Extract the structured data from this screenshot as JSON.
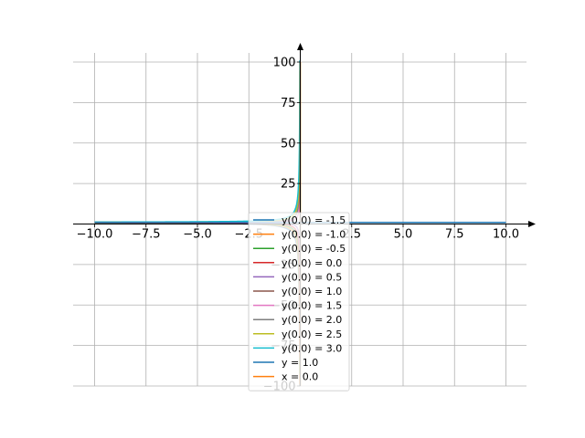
{
  "chart_data": {
    "type": "line",
    "title": "",
    "xlabel": "",
    "ylabel": "",
    "xlim": [
      -10,
      10
    ],
    "ylim": [
      -100,
      100
    ],
    "x_ticks": [
      -10.0,
      -7.5,
      -5.0,
      -2.5,
      2.5,
      5.0,
      7.5,
      10.0
    ],
    "x_tick_labels": [
      "−10.0",
      "−7.5",
      "−5.0",
      "−2.5",
      "2.5",
      "5.0",
      "7.5",
      "10.0"
    ],
    "y_ticks": [
      100,
      75,
      50,
      25,
      -25,
      -50,
      -75,
      -100
    ],
    "y_tick_labels": [
      "100",
      "75",
      "50",
      "25",
      "−25",
      "−50",
      "−75",
      "−100"
    ],
    "grid": true,
    "spines": "centered at origin with arrows",
    "legend_position": "center",
    "series": [
      {
        "name": "y(0.0) = -1.5",
        "color": "#1f77b4",
        "kind": "solution",
        "c": -1.5
      },
      {
        "name": "y(0.0) = -1.0",
        "color": "#ff7f0e",
        "kind": "solution",
        "c": -1.0
      },
      {
        "name": "y(0.0) = -0.5",
        "color": "#2ca02c",
        "kind": "solution",
        "c": -0.5
      },
      {
        "name": "y(0.0) = 0.0",
        "color": "#d62728",
        "kind": "solution",
        "c": 0.0
      },
      {
        "name": "y(0.0) = 0.5",
        "color": "#9467bd",
        "kind": "solution",
        "c": 0.5
      },
      {
        "name": "y(0.0) = 1.0",
        "color": "#8c564b",
        "kind": "solution",
        "c": 1.0
      },
      {
        "name": "y(0.0) = 1.5",
        "color": "#e377c2",
        "kind": "solution",
        "c": 1.5
      },
      {
        "name": "y(0.0) = 2.0",
        "color": "#7f7f7f",
        "kind": "solution",
        "c": 2.0
      },
      {
        "name": "y(0.0) = 2.5",
        "color": "#bcbd22",
        "kind": "solution",
        "c": 2.5
      },
      {
        "name": "y(0.0) = 3.0",
        "color": "#17becf",
        "kind": "solution",
        "c": 3.0
      },
      {
        "name": "y = 1.0",
        "color": "#1f77b4",
        "kind": "hline",
        "value": 1.0
      },
      {
        "name": "x = 0.0",
        "color": "#ff7f0e",
        "kind": "vline",
        "value": 0.0
      }
    ]
  }
}
